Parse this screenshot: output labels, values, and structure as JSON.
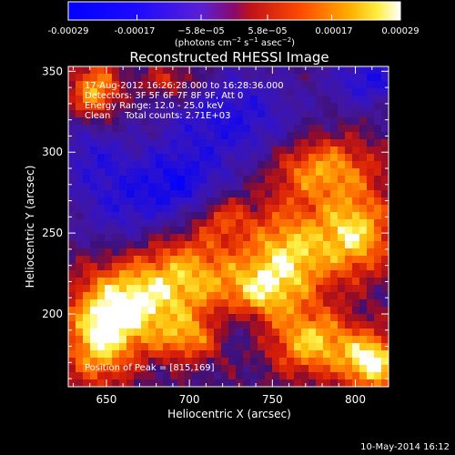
{
  "chart_data": {
    "type": "heatmap",
    "title": "Reconstructed RHESSI Image",
    "xlabel": "Heliocentric X (arcsec)",
    "ylabel": "Heliocentric Y (arcsec)",
    "xlim": [
      627,
      820
    ],
    "ylim": [
      155,
      353
    ],
    "x_ticks": [
      650,
      700,
      750,
      800
    ],
    "y_ticks": [
      200,
      250,
      300,
      350
    ],
    "x_tick_labels": [
      "650",
      "700",
      "750",
      "800"
    ],
    "y_tick_labels": [
      "200",
      "250",
      "300",
      "350"
    ],
    "colorbar": {
      "min": -0.00029,
      "max": 0.00029,
      "ticks": [
        -0.00029,
        -0.00017,
        -5.8e-05,
        5.8e-05,
        0.00017,
        0.00029
      ],
      "tick_labels": [
        "-0.00029",
        "-0.00017",
        "−5.8e−05",
        "5.8e−05",
        "0.00017",
        "0.00029"
      ],
      "unit_label_parts": [
        "(photons cm",
        "−2",
        " s",
        "−1",
        " asec",
        "−2",
        ")"
      ],
      "placement": "top"
    },
    "annotations": [
      "17-Aug-2012 16:26:28.000 to 16:28:36.000",
      "Detectors: 3F 5F 6F 7F 8F 9F, Att 0",
      "Energy Range: 12.0 - 25.0 keV",
      "Clean     Total counts: 2.71E+03"
    ],
    "peak_text": "Position of Peak = [815,169]",
    "peak_position": [
      815,
      169
    ],
    "hot_regions": [
      {
        "x": 643,
        "y": 338,
        "sx": 10,
        "sy": 12,
        "a": 0.75
      },
      {
        "x": 690,
        "y": 343,
        "sx": 14,
        "sy": 8,
        "a": 0.45
      },
      {
        "x": 660,
        "y": 205,
        "sx": 20,
        "sy": 18,
        "a": 0.9
      },
      {
        "x": 645,
        "y": 180,
        "sx": 14,
        "sy": 18,
        "a": 0.7
      },
      {
        "x": 700,
        "y": 222,
        "sx": 22,
        "sy": 20,
        "a": 0.75
      },
      {
        "x": 700,
        "y": 185,
        "sx": 15,
        "sy": 10,
        "a": 0.55
      },
      {
        "x": 780,
        "y": 290,
        "sx": 22,
        "sy": 14,
        "a": 0.7
      },
      {
        "x": 800,
        "y": 250,
        "sx": 16,
        "sy": 18,
        "a": 0.85
      },
      {
        "x": 760,
        "y": 235,
        "sx": 18,
        "sy": 22,
        "a": 0.85
      },
      {
        "x": 740,
        "y": 210,
        "sx": 14,
        "sy": 14,
        "a": 0.6
      },
      {
        "x": 775,
        "y": 182,
        "sx": 18,
        "sy": 14,
        "a": 0.8
      },
      {
        "x": 810,
        "y": 170,
        "sx": 12,
        "sy": 12,
        "a": 1.0
      },
      {
        "x": 720,
        "y": 260,
        "sx": 12,
        "sy": 10,
        "a": 0.4
      }
    ],
    "cold_regions": [
      {
        "x": 725,
        "y": 320,
        "sx": 30,
        "sy": 22,
        "a": 0.55
      },
      {
        "x": 660,
        "y": 270,
        "sx": 22,
        "sy": 20,
        "a": 0.45
      },
      {
        "x": 695,
        "y": 280,
        "sx": 18,
        "sy": 16,
        "a": 0.5
      },
      {
        "x": 730,
        "y": 195,
        "sx": 14,
        "sy": 12,
        "a": 0.4
      },
      {
        "x": 808,
        "y": 345,
        "sx": 16,
        "sy": 12,
        "a": 0.55
      },
      {
        "x": 640,
        "y": 300,
        "sx": 14,
        "sy": 14,
        "a": 0.35
      }
    ]
  },
  "footer": {
    "timestamp": "10-May-2014 16:12"
  }
}
